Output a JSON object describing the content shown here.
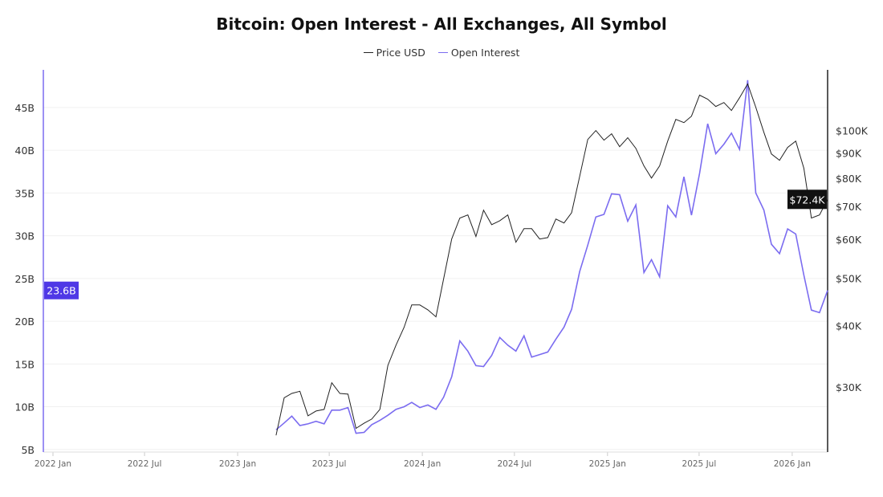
{
  "chart_data": {
    "type": "line",
    "title": "Bitcoin: Open Interest - All Exchanges, All Symbol",
    "legend": {
      "position": "top",
      "entries": [
        "Price USD",
        "Open Interest"
      ]
    },
    "colors": {
      "price": "#222222",
      "open_interest": "#7b6cf0",
      "oi_label_bg": "#4f38e6",
      "price_label_bg": "#111111"
    },
    "grid": true,
    "x_ticks": [
      "2022 Jan",
      "2022 Jul",
      "2023 Jan",
      "2023 Jul",
      "2024 Jan",
      "2024 Jul",
      "2025 Jan",
      "2025 Jul",
      "2026 Jan"
    ],
    "x_tick_dates": [
      "2022-01-01",
      "2022-07-01",
      "2023-01-01",
      "2023-07-01",
      "2024-01-01",
      "2024-07-01",
      "2025-01-01",
      "2025-07-01",
      "2026-01-01"
    ],
    "x_range": [
      "2021-12-13",
      "2026-03-12"
    ],
    "left_axis": {
      "unit": "B",
      "scale": "linear",
      "ylim": [
        4.7,
        49.4
      ],
      "ticks": [
        5,
        10,
        15,
        20,
        25,
        30,
        35,
        40,
        45
      ],
      "tick_labels": [
        "5B",
        "10B",
        "15B",
        "20B",
        "25B",
        "30B",
        "35B",
        "40B",
        "45B"
      ],
      "current_label": "23.6B",
      "current_value": 23.6
    },
    "right_axis": {
      "unit": "USD",
      "scale": "log",
      "ylim": [
        22.1,
        133
      ],
      "ticks": [
        30,
        40,
        50,
        60,
        70,
        80,
        90,
        100
      ],
      "tick_labels": [
        "$30K",
        "$40K",
        "$50K",
        "$60K",
        "$70K",
        "$80K",
        "$90K",
        "$100K"
      ],
      "current_label": "$72.4K",
      "current_value": 72.4
    },
    "x": [
      "2023-03-18",
      "2023-04-03",
      "2023-04-18",
      "2023-05-04",
      "2023-05-20",
      "2023-06-05",
      "2023-06-21",
      "2023-07-06",
      "2023-07-22",
      "2023-08-07",
      "2023-08-23",
      "2023-09-08",
      "2023-09-23",
      "2023-10-09",
      "2023-10-25",
      "2023-11-10",
      "2023-11-26",
      "2023-12-11",
      "2023-12-27",
      "2024-01-12",
      "2024-01-28",
      "2024-02-12",
      "2024-02-28",
      "2024-03-15",
      "2024-03-31",
      "2024-04-16",
      "2024-05-01",
      "2024-05-17",
      "2024-06-02",
      "2024-06-18",
      "2024-07-04",
      "2024-07-20",
      "2024-08-04",
      "2024-08-20",
      "2024-09-05",
      "2024-09-21",
      "2024-10-07",
      "2024-10-22",
      "2024-11-07",
      "2024-11-23",
      "2024-12-09",
      "2024-12-25",
      "2025-01-09",
      "2025-01-25",
      "2025-02-10",
      "2025-02-26",
      "2025-03-14",
      "2025-03-29",
      "2025-04-14",
      "2025-04-30",
      "2025-05-16",
      "2025-06-01",
      "2025-06-16",
      "2025-07-02",
      "2025-07-18",
      "2025-08-03",
      "2025-08-19",
      "2025-09-03",
      "2025-09-19",
      "2025-10-05",
      "2025-10-21",
      "2025-11-06",
      "2025-11-21",
      "2025-12-07",
      "2025-12-23",
      "2026-01-08",
      "2026-01-24",
      "2026-02-08",
      "2026-02-24",
      "2026-03-12"
    ],
    "series": [
      {
        "name": "Price USD",
        "axis": "right",
        "unit": "thousand USD",
        "values": [
          23.9,
          28.5,
          29.1,
          29.4,
          26.2,
          26.8,
          27.0,
          30.6,
          29.1,
          29.0,
          24.7,
          25.3,
          25.8,
          27.0,
          33.2,
          36.5,
          39.7,
          44.1,
          44.1,
          43.1,
          41.7,
          49.8,
          60.1,
          66.3,
          67.3,
          60.8,
          68.8,
          64.3,
          65.5,
          67.3,
          59.2,
          63.1,
          63.1,
          60.1,
          60.5,
          66.0,
          64.8,
          68.0,
          80.6,
          95.9,
          100.0,
          95.6,
          98.5,
          92.7,
          96.7,
          92.0,
          84.7,
          80.0,
          84.7,
          95.2,
          105.4,
          103.8,
          107.0,
          118.1,
          115.9,
          112.0,
          114.1,
          109.9,
          116.7,
          124.5,
          111.6,
          99.2,
          89.6,
          87.0,
          92.4,
          95.2,
          83.8,
          66.3,
          67.3,
          72.4
        ]
      },
      {
        "name": "Open Interest",
        "axis": "left",
        "unit": "billion USD",
        "values": [
          7.3,
          8.1,
          8.9,
          7.8,
          8.0,
          8.3,
          8.0,
          9.6,
          9.6,
          9.9,
          6.9,
          7.0,
          7.9,
          8.4,
          9.0,
          9.7,
          10.0,
          10.5,
          9.9,
          10.2,
          9.7,
          11.1,
          13.5,
          17.7,
          16.5,
          14.8,
          14.7,
          16.0,
          18.1,
          17.2,
          16.5,
          18.3,
          15.8,
          16.1,
          16.4,
          17.9,
          19.3,
          21.4,
          25.8,
          28.9,
          32.2,
          32.5,
          34.9,
          34.8,
          31.7,
          33.6,
          25.7,
          27.2,
          25.2,
          33.5,
          32.2,
          36.9,
          32.4,
          37.3,
          43.1,
          39.6,
          40.7,
          42.0,
          40.1,
          48.2,
          35.0,
          33.0,
          29.0,
          27.9,
          30.8,
          30.2,
          25.4,
          21.3,
          21.0,
          23.6
        ]
      }
    ]
  }
}
